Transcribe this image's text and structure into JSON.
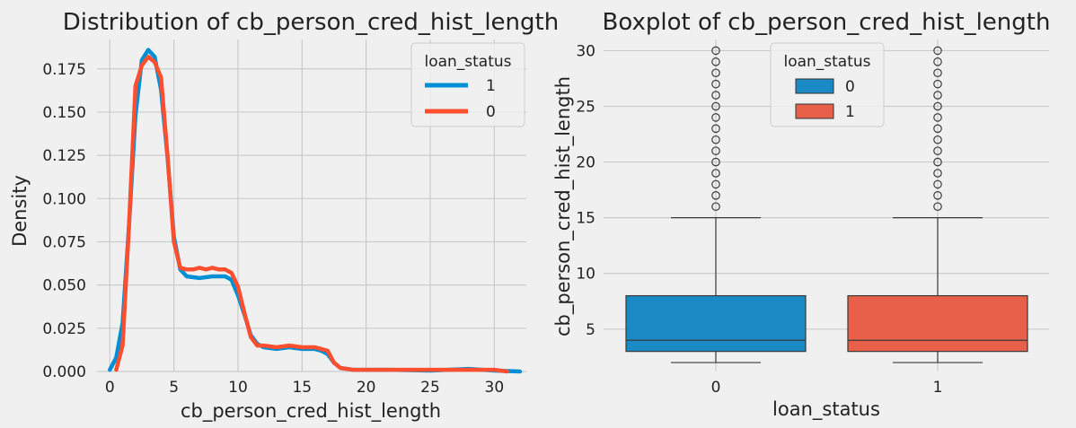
{
  "chart_data": [
    {
      "type": "line",
      "chart_kind": "kde",
      "title": "Distribution of cb_person_cred_hist_length",
      "xlabel": "cb_person_cred_hist_length",
      "ylabel": "Density",
      "xlim": [
        -1,
        32.5
      ],
      "ylim": [
        0,
        0.192
      ],
      "xticks": [
        0,
        5,
        10,
        15,
        20,
        25,
        30
      ],
      "yticks": [
        "0.000",
        "0.025",
        "0.050",
        "0.075",
        "0.100",
        "0.125",
        "0.150",
        "0.175"
      ],
      "grid": true,
      "legend": {
        "title": "loan_status",
        "placement": "top-right"
      },
      "series": [
        {
          "name": "1",
          "color": "#008fd5",
          "points": [
            [
              0,
              0.001
            ],
            [
              0.5,
              0.008
            ],
            [
              1,
              0.028
            ],
            [
              1.5,
              0.085
            ],
            [
              2,
              0.148
            ],
            [
              2.5,
              0.18
            ],
            [
              3,
              0.186
            ],
            [
              3.5,
              0.182
            ],
            [
              4,
              0.163
            ],
            [
              4.5,
              0.124
            ],
            [
              5,
              0.078
            ],
            [
              5.5,
              0.059
            ],
            [
              6,
              0.055
            ],
            [
              7,
              0.054
            ],
            [
              8,
              0.055
            ],
            [
              9,
              0.055
            ],
            [
              9.5,
              0.053
            ],
            [
              10,
              0.044
            ],
            [
              10.5,
              0.033
            ],
            [
              11,
              0.021
            ],
            [
              11.5,
              0.016
            ],
            [
              12,
              0.014
            ],
            [
              13,
              0.013
            ],
            [
              14,
              0.014
            ],
            [
              15,
              0.013
            ],
            [
              16,
              0.013
            ],
            [
              16.5,
              0.012
            ],
            [
              17,
              0.01
            ],
            [
              17.5,
              0.005
            ],
            [
              18,
              0.002
            ],
            [
              19,
              0.001
            ],
            [
              22,
              0.001
            ],
            [
              25,
              0.0005
            ],
            [
              28,
              0.0015
            ],
            [
              30,
              0.0005
            ],
            [
              32,
              0
            ]
          ]
        },
        {
          "name": "0",
          "color": "#fc4f30",
          "points": [
            [
              0.5,
              0.001
            ],
            [
              1,
              0.015
            ],
            [
              1.5,
              0.085
            ],
            [
              2,
              0.165
            ],
            [
              2.5,
              0.177
            ],
            [
              3,
              0.182
            ],
            [
              3.5,
              0.179
            ],
            [
              4,
              0.17
            ],
            [
              4.5,
              0.125
            ],
            [
              5,
              0.075
            ],
            [
              5.5,
              0.06
            ],
            [
              6,
              0.059
            ],
            [
              6.5,
              0.059
            ],
            [
              7,
              0.06
            ],
            [
              7.5,
              0.059
            ],
            [
              8,
              0.06
            ],
            [
              8.5,
              0.059
            ],
            [
              9,
              0.059
            ],
            [
              9.5,
              0.057
            ],
            [
              10,
              0.049
            ],
            [
              10.5,
              0.034
            ],
            [
              11,
              0.02
            ],
            [
              11.5,
              0.015
            ],
            [
              12,
              0.015
            ],
            [
              13,
              0.014
            ],
            [
              14,
              0.015
            ],
            [
              15,
              0.014
            ],
            [
              16,
              0.014
            ],
            [
              16.5,
              0.013
            ],
            [
              17,
              0.012
            ],
            [
              17.5,
              0.005
            ],
            [
              18,
              0.002
            ],
            [
              19,
              0.001
            ],
            [
              22,
              0.001
            ],
            [
              25,
              0.001
            ],
            [
              28,
              0.001
            ],
            [
              30,
              0.001
            ],
            [
              31,
              0
            ]
          ]
        }
      ]
    },
    {
      "type": "box",
      "title": "Boxplot of cb_person_cred_hist_length",
      "xlabel": "loan_status",
      "ylabel": "cb_person_cred_hist_length",
      "categories": [
        "0",
        "1"
      ],
      "ylim": [
        1.2,
        31
      ],
      "yticks": [
        5,
        10,
        15,
        20,
        25,
        30
      ],
      "grid": true,
      "legend": {
        "title": "loan_status",
        "placement": "top-center"
      },
      "boxes": [
        {
          "name": "0",
          "color": "#1a8ac4",
          "min": 2,
          "q1": 3,
          "median": 4,
          "q3": 8,
          "max": 15,
          "outliers": [
            16,
            17,
            18,
            19,
            20,
            21,
            22,
            23,
            24,
            25,
            26,
            27,
            28,
            29,
            30
          ]
        },
        {
          "name": "1",
          "color": "#e8604a",
          "min": 2,
          "q1": 3,
          "median": 4,
          "q3": 8,
          "max": 15,
          "outliers": [
            16,
            17,
            18,
            19,
            20,
            21,
            22,
            23,
            24,
            25,
            26,
            27,
            28,
            29,
            30
          ]
        }
      ]
    }
  ]
}
